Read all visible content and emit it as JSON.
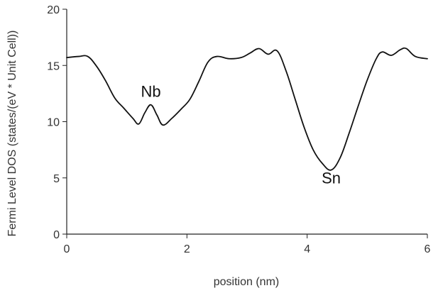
{
  "chart_data": {
    "type": "line",
    "title": "",
    "xlabel": "position (nm)",
    "ylabel": "Fermi Level DOS (states/(eV * Unit Cell))",
    "xlim": [
      0,
      6
    ],
    "ylim": [
      0,
      20
    ],
    "x_ticks": [
      0,
      2,
      4,
      6
    ],
    "y_ticks": [
      0,
      5,
      10,
      15,
      20
    ],
    "x_tick_labels": [
      "0",
      "2",
      "4",
      "6"
    ],
    "y_tick_labels": [
      "0",
      "5",
      "10",
      "15",
      "20"
    ],
    "grid": false,
    "legend": "none",
    "series": [
      {
        "color": "#111111",
        "x": [
          0,
          0.2,
          0.35,
          0.5,
          0.65,
          0.8,
          0.95,
          1.1,
          1.2,
          1.3,
          1.4,
          1.5,
          1.6,
          1.75,
          1.9,
          2.05,
          2.2,
          2.35,
          2.5,
          2.7,
          2.9,
          3.05,
          3.2,
          3.35,
          3.5,
          3.65,
          3.8,
          3.95,
          4.1,
          4.25,
          4.4,
          4.55,
          4.7,
          4.85,
          5.0,
          5.15,
          5.25,
          5.4,
          5.55,
          5.65,
          5.8,
          6.0
        ],
        "y": [
          15.7,
          15.8,
          15.8,
          14.9,
          13.6,
          12.1,
          11.2,
          10.3,
          9.8,
          10.8,
          11.5,
          10.6,
          9.7,
          10.3,
          11.1,
          12.0,
          13.6,
          15.3,
          15.8,
          15.6,
          15.7,
          16.1,
          16.5,
          16.0,
          16.3,
          14.5,
          12.0,
          9.5,
          7.5,
          6.3,
          5.7,
          6.8,
          9.0,
          11.4,
          13.7,
          15.6,
          16.2,
          15.9,
          16.4,
          16.5,
          15.8,
          15.6
        ]
      }
    ],
    "annotations": [
      {
        "text": "Nb",
        "x": 1.4,
        "y": 12.2
      },
      {
        "text": "Sn",
        "x": 4.4,
        "y": 4.5
      }
    ]
  }
}
